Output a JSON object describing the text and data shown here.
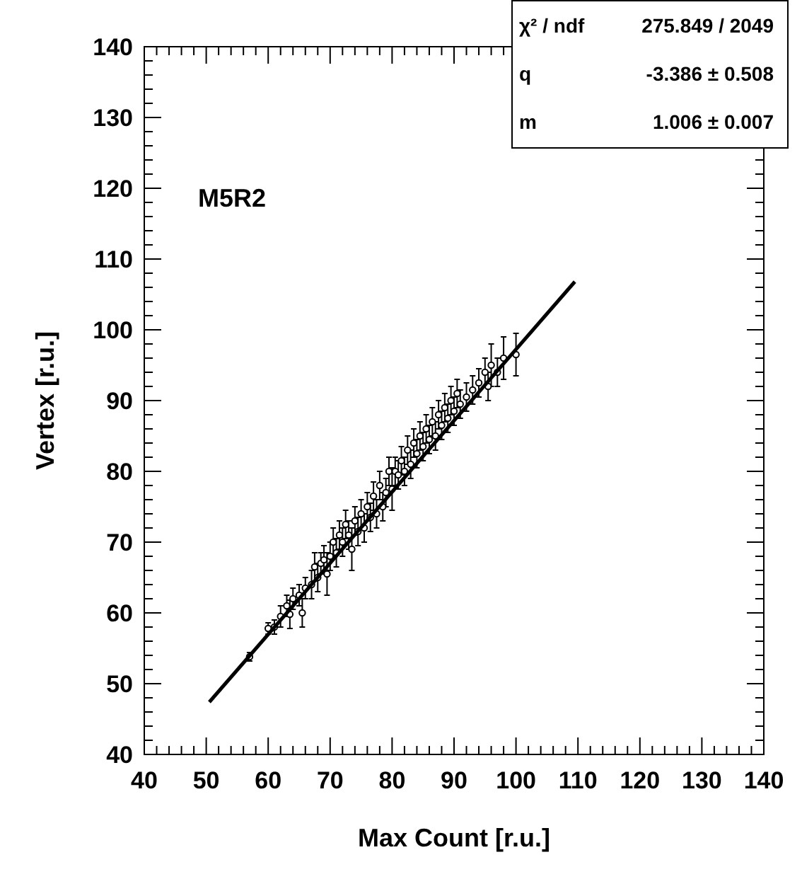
{
  "chart_data": {
    "type": "scatter",
    "xlabel": "Max Count [r.u.]",
    "ylabel": "Vertex [r.u.]",
    "xlim": [
      40,
      140
    ],
    "ylim": [
      40,
      140
    ],
    "xticks": [
      40,
      {
        "value": 42,
        "label": null
      },
      {
        "value": 44,
        "label": null
      },
      {
        "value": 46,
        "label": null
      },
      {
        "value": 48,
        "label": null
      },
      50,
      {
        "value": 52,
        "label": null
      },
      {
        "value": 54,
        "label": null
      },
      {
        "value": 56,
        "label": null
      },
      {
        "value": 58,
        "label": null
      },
      60,
      {
        "value": 62,
        "label": null
      },
      {
        "value": 64,
        "label": null
      },
      {
        "value": 66,
        "label": null
      },
      {
        "value": 68,
        "label": null
      },
      70,
      {
        "value": 72,
        "label": null
      },
      {
        "value": 74,
        "label": null
      },
      {
        "value": 76,
        "label": null
      },
      {
        "value": 78,
        "label": null
      },
      80,
      {
        "value": 82,
        "label": null
      },
      {
        "value": 84,
        "label": null
      },
      {
        "value": 86,
        "label": null
      },
      {
        "value": 88,
        "label": null
      },
      90,
      {
        "value": 92,
        "label": null
      },
      {
        "value": 94,
        "label": null
      },
      {
        "value": 96,
        "label": null
      },
      {
        "value": 98,
        "label": null
      },
      100,
      {
        "value": 102,
        "label": null
      },
      {
        "value": 104,
        "label": null
      },
      {
        "value": 106,
        "label": null
      },
      {
        "value": 108,
        "label": null
      },
      110,
      {
        "value": 112,
        "label": null
      },
      {
        "value": 114,
        "label": null
      },
      {
        "value": 116,
        "label": null
      },
      {
        "value": 118,
        "label": null
      },
      120,
      {
        "value": 122,
        "label": null
      },
      {
        "value": 124,
        "label": null
      },
      {
        "value": 126,
        "label": null
      },
      {
        "value": 128,
        "label": null
      },
      130,
      {
        "value": 132,
        "label": null
      },
      {
        "value": 134,
        "label": null
      },
      {
        "value": 136,
        "label": null
      },
      {
        "value": 138,
        "label": null
      },
      140
    ],
    "yticks": [
      40,
      {
        "value": 42,
        "label": null
      },
      {
        "value": 44,
        "label": null
      },
      {
        "value": 46,
        "label": null
      },
      {
        "value": 48,
        "label": null
      },
      50,
      {
        "value": 52,
        "label": null
      },
      {
        "value": 54,
        "label": null
      },
      {
        "value": 56,
        "label": null
      },
      {
        "value": 58,
        "label": null
      },
      60,
      {
        "value": 62,
        "label": null
      },
      {
        "value": 64,
        "label": null
      },
      {
        "value": 66,
        "label": null
      },
      {
        "value": 68,
        "label": null
      },
      70,
      {
        "value": 72,
        "label": null
      },
      {
        "value": 74,
        "label": null
      },
      {
        "value": 76,
        "label": null
      },
      {
        "value": 78,
        "label": null
      },
      80,
      {
        "value": 82,
        "label": null
      },
      {
        "value": 84,
        "label": null
      },
      {
        "value": 86,
        "label": null
      },
      {
        "value": 88,
        "label": null
      },
      90,
      {
        "value": 92,
        "label": null
      },
      {
        "value": 94,
        "label": null
      },
      {
        "value": 96,
        "label": null
      },
      {
        "value": 98,
        "label": null
      },
      100,
      {
        "value": 102,
        "label": null
      },
      {
        "value": 104,
        "label": null
      },
      {
        "value": 106,
        "label": null
      },
      {
        "value": 108,
        "label": null
      },
      110,
      {
        "value": 112,
        "label": null
      },
      {
        "value": 114,
        "label": null
      },
      {
        "value": 116,
        "label": null
      },
      {
        "value": 118,
        "label": null
      },
      120,
      {
        "value": 122,
        "label": null
      },
      {
        "value": 124,
        "label": null
      },
      {
        "value": 126,
        "label": null
      },
      {
        "value": 128,
        "label": null
      },
      130,
      {
        "value": 132,
        "label": null
      },
      {
        "value": 134,
        "label": null
      },
      {
        "value": 136,
        "label": null
      },
      {
        "value": 138,
        "label": null
      },
      140
    ],
    "grid": false,
    "annotations": [
      "M5R2",
      "χ² / ndf",
      "275.849 / 2049",
      "q",
      "-3.386 ± 0.508",
      "m",
      "1.006 ± 0.007"
    ],
    "series": [
      {
        "marker": "circle",
        "color": "#000000",
        "x": [
          57,
          60,
          61,
          62,
          63,
          63.5,
          64,
          65,
          65.5,
          66,
          67,
          67.5,
          68,
          68.5,
          69,
          69.5,
          70,
          70.5,
          71,
          71.5,
          72,
          72.5,
          73,
          73.5,
          74,
          74.5,
          75,
          75.5,
          76,
          76.5,
          77,
          77.5,
          78,
          78.5,
          79,
          79.5,
          80,
          80.5,
          81,
          81.5,
          82,
          82.5,
          83,
          83.5,
          84,
          84.5,
          85,
          85.5,
          86,
          86.5,
          87,
          87.5,
          88,
          88.5,
          89,
          89.5,
          90,
          90.5,
          91,
          92,
          93,
          94,
          95,
          95.5,
          96,
          97,
          98,
          100
        ],
        "values": [
          53.8,
          57.8,
          58,
          59.5,
          61,
          59.8,
          62,
          62.5,
          60,
          63.5,
          64,
          66.5,
          65,
          67,
          67.5,
          65.5,
          68,
          70,
          68.5,
          71,
          70,
          72.5,
          71,
          69,
          73,
          71.5,
          74,
          72,
          75,
          73.5,
          76.5,
          74,
          78,
          75,
          77,
          80,
          77.5,
          80,
          79.5,
          81.5,
          80,
          83,
          81,
          84,
          82.5,
          85,
          83.5,
          86,
          84.5,
          87,
          85,
          88,
          86.5,
          89,
          87.5,
          90,
          88.5,
          91,
          89.5,
          90.5,
          91.5,
          92.5,
          94,
          92,
          95,
          94,
          96,
          96.5
        ],
        "errors": [
          0.6,
          0.8,
          1,
          1.5,
          1.5,
          2,
          1.5,
          1.5,
          2,
          1.5,
          2,
          2,
          2,
          1.5,
          2,
          3,
          2,
          2,
          2,
          2,
          2,
          2,
          2,
          3,
          2,
          2,
          2,
          2,
          2,
          2,
          2,
          2,
          2,
          2,
          2,
          2,
          3,
          2,
          2,
          2,
          2,
          2,
          2,
          2,
          2,
          2,
          2,
          2,
          2,
          2,
          2,
          2,
          2,
          2,
          2,
          2,
          2,
          2,
          2,
          2,
          2,
          2,
          2,
          2,
          3,
          2,
          3,
          3
        ]
      },
      {
        "type": "line",
        "marker": "none",
        "color": "#000000",
        "x": [
          50.5,
          109.5
        ],
        "values": [
          47.4,
          106.8
        ]
      }
    ]
  }
}
